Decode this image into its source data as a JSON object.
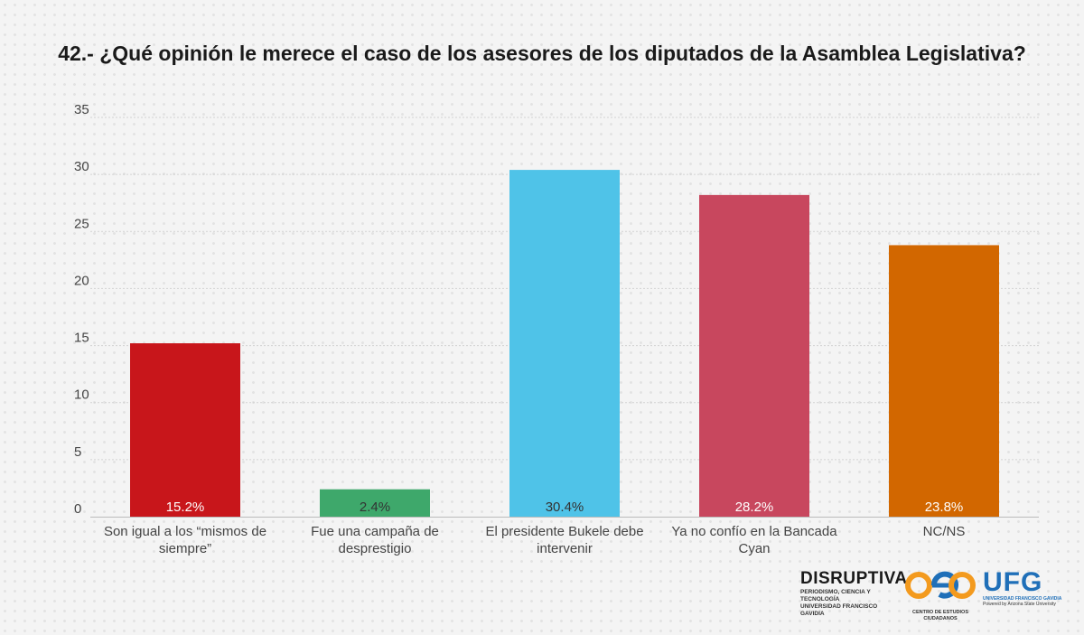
{
  "chart_data": {
    "type": "bar",
    "title": "42.- ¿Qué opinión le merece el caso de los asesores de los diputados de la Asamblea Legislativa?",
    "categories": [
      [
        "Son igual a los “mismos de",
        "siempre”"
      ],
      [
        "Fue una campaña de",
        "desprestigio"
      ],
      [
        "El presidente Bukele debe",
        "intervenir"
      ],
      [
        "Ya no confío en la Bancada",
        "Cyan"
      ],
      [
        "NC/NS"
      ]
    ],
    "values": [
      15.2,
      2.4,
      30.4,
      28.2,
      23.8
    ],
    "data_labels": [
      "15.2%",
      "2.4%",
      "30.4%",
      "28.2%",
      "23.8%"
    ],
    "colors": [
      "#c8161b",
      "#3ea86b",
      "#4fc3e8",
      "#c8475e",
      "#d26700"
    ],
    "label_colors": [
      "#ffffff",
      "#333333",
      "#333333",
      "#ffffff",
      "#ffffff"
    ],
    "ylim": [
      0,
      35
    ],
    "yticks": [
      0,
      5,
      10,
      15,
      20,
      25,
      30,
      35
    ],
    "grid": true,
    "xlabel": "",
    "ylabel": ""
  },
  "logos": {
    "disruptiva": {
      "name": "DISRUPTIVA",
      "sub1": "PERIODISMO, CIENCIA Y TECNOLOGÍA",
      "sub2": "UNIVERSIDAD FRANCISCO GAVIDIA"
    },
    "cec": {
      "sub": "CENTRO DE ESTUDIOS CIUDADANOS"
    },
    "ufg": {
      "name": "UFG",
      "sub1": "UNIVERSIDAD FRANCISCO GAVIDIA",
      "sub2": "Powered by Arizona State University"
    }
  }
}
